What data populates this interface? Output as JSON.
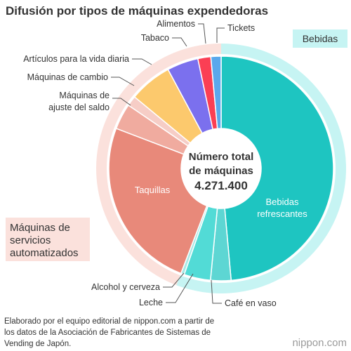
{
  "chart_data": {
    "type": "pie",
    "title": "Difusión por tipos de máquinas expendedoras",
    "center_label": [
      "Número total",
      "de máquinas"
    ],
    "total": "4.271.400",
    "total_value": 4271400,
    "slices": [
      {
        "label": "Bebidas refrescantes",
        "value": 49.6,
        "color": "#1ec5c1"
      },
      {
        "label": "Café en vaso",
        "value": 3.0,
        "color": "#5dd6d3"
      },
      {
        "label": "Leche",
        "value": 3.9,
        "color": "#52dbd6"
      },
      {
        "label": "Alcohol y cerveza",
        "value": 0.5,
        "color": "#a8e9e6"
      },
      {
        "label": "Taquillas",
        "value": 25.5,
        "color": "#e8897a"
      },
      {
        "label": "Máquinas de ajuste del saldo",
        "value": 3.8,
        "color": "#f0ab9f"
      },
      {
        "label": "Máquinas de cambio",
        "value": 1.5,
        "color": "#f6cdc6"
      },
      {
        "label": "Artículos para la vida diaria",
        "value": 6.3,
        "color": "#fcc96d"
      },
      {
        "label": "Tabaco",
        "value": 4.6,
        "color": "#7b70ee"
      },
      {
        "label": "Alimentos",
        "value": 1.9,
        "color": "#fb3f54"
      },
      {
        "label": "Tickets",
        "value": 1.5,
        "color": "#5aa8ec"
      }
    ],
    "groups": [
      {
        "label": "Bebidas",
        "color": "#c6f4f3",
        "from": 0,
        "to": 3
      },
      {
        "label": "Máquinas de servicios automatizados",
        "label_lines": [
          "Máquinas de",
          "servicios",
          "automatizados"
        ],
        "color": "#fbe1dc",
        "from": 4,
        "to": 10
      }
    ]
  },
  "footer": [
    "Elaborado por el equipo editorial de nippon.com a partir de",
    "los datos de la Asociación de Fabricantes de Sistemas de",
    "Vending de Japón."
  ],
  "logo": "nippon.com"
}
